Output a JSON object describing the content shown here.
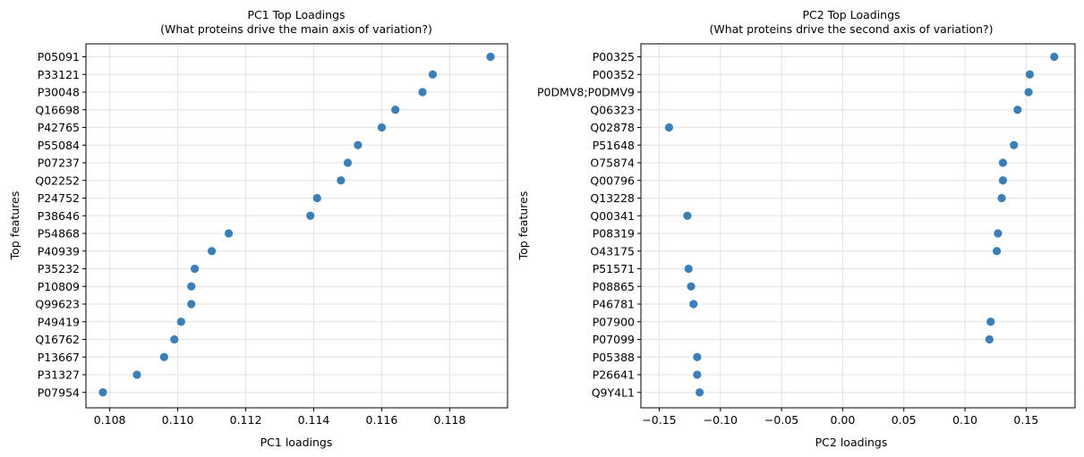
{
  "colors": {
    "marker": "#3a7fb8",
    "grid": "#e6e6e6",
    "axis": "#000000",
    "background": "#ffffff"
  },
  "chart_data": [
    {
      "type": "scatter",
      "title": "PC1 Top Loadings",
      "subtitle": "(What proteins drive the main axis of variation?)",
      "xlabel": "PC1 loadings",
      "ylabel": "Top features",
      "xlim": [
        0.1073,
        0.1197
      ],
      "xticks": [
        0.108,
        0.11,
        0.112,
        0.114,
        0.116,
        0.118
      ],
      "xtick_labels": [
        "0.108",
        "0.110",
        "0.112",
        "0.114",
        "0.116",
        "0.118"
      ],
      "grid": true,
      "categories": [
        "P05091",
        "P33121",
        "P30048",
        "Q16698",
        "P42765",
        "P55084",
        "P07237",
        "Q02252",
        "P24752",
        "P38646",
        "P54868",
        "P40939",
        "P35232",
        "P10809",
        "Q99623",
        "P49419",
        "Q16762",
        "P13667",
        "P31327",
        "P07954"
      ],
      "values": [
        0.1192,
        0.1175,
        0.1172,
        0.1164,
        0.116,
        0.1153,
        0.115,
        0.1148,
        0.1141,
        0.1139,
        0.1115,
        0.111,
        0.1105,
        0.1104,
        0.1104,
        0.1101,
        0.1099,
        0.1096,
        0.1088,
        0.1078
      ]
    },
    {
      "type": "scatter",
      "title": "PC2 Top Loadings",
      "subtitle": "(What proteins drive the second axis of variation?)",
      "xlabel": "PC2 loadings",
      "ylabel": "Top features",
      "xlim": [
        -0.165,
        0.19
      ],
      "xticks": [
        -0.15,
        -0.1,
        -0.05,
        0.0,
        0.05,
        0.1,
        0.15
      ],
      "xtick_labels": [
        "−0.15",
        "−0.10",
        "−0.05",
        "0.00",
        "0.05",
        "0.10",
        "0.15"
      ],
      "grid": true,
      "categories": [
        "P00325",
        "P00352",
        "P0DMV8;P0DMV9",
        "Q06323",
        "Q02878",
        "P51648",
        "O75874",
        "Q00796",
        "Q13228",
        "Q00341",
        "P08319",
        "O43175",
        "P51571",
        "P08865",
        "P46781",
        "P07900",
        "P07099",
        "P05388",
        "P26641",
        "Q9Y4L1"
      ],
      "values": [
        0.173,
        0.153,
        0.152,
        0.143,
        -0.142,
        0.14,
        0.131,
        0.131,
        0.13,
        -0.127,
        0.127,
        0.126,
        -0.126,
        -0.124,
        -0.122,
        0.121,
        0.12,
        -0.119,
        -0.119,
        -0.117
      ]
    }
  ]
}
